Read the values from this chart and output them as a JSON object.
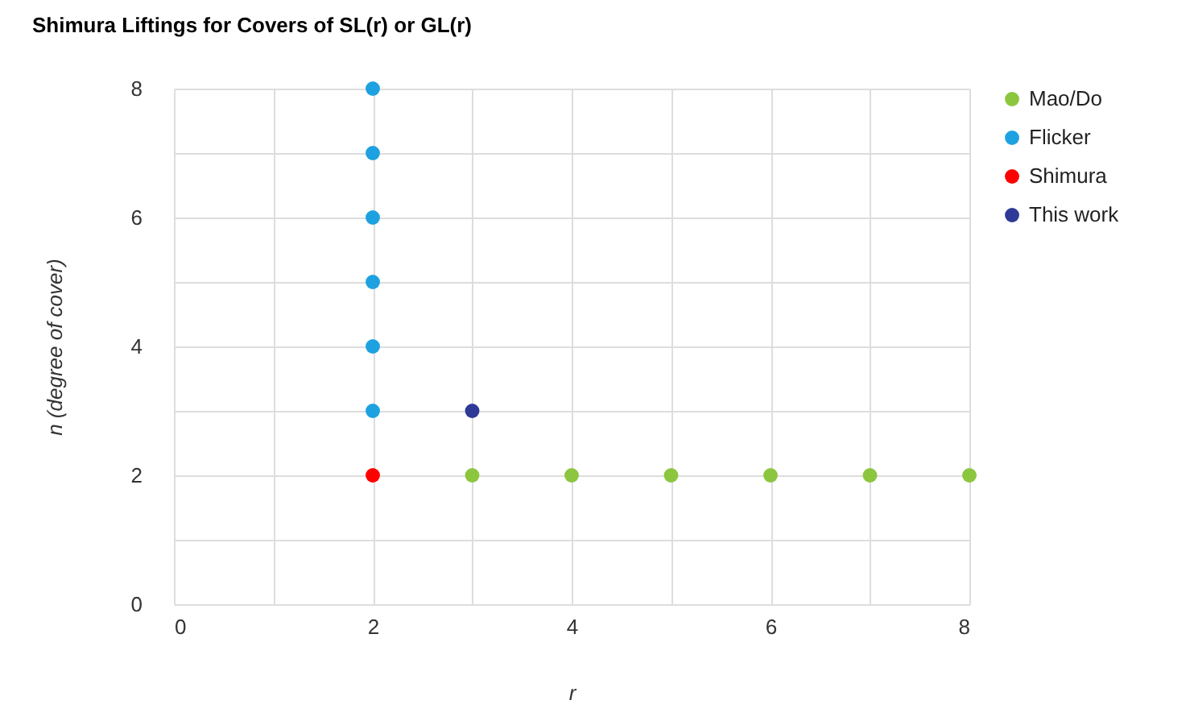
{
  "chart_data": {
    "type": "scatter",
    "title": "Shimura Liftings for Covers of SL(r) or GL(r)",
    "xlabel": "r",
    "ylabel": "n (degree of cover)",
    "series": [
      {
        "name": "Mao/Do",
        "color": "#8cc63f",
        "x": [
          3,
          4,
          5,
          6,
          7,
          8
        ],
        "values": [
          2,
          2,
          2,
          2,
          2,
          2
        ]
      },
      {
        "name": "Flicker",
        "color": "#1ea1e0",
        "x": [
          2,
          2,
          2,
          2,
          2,
          2
        ],
        "values": [
          3,
          4,
          5,
          6,
          7,
          8
        ]
      },
      {
        "name": "Shimura",
        "color": "#ff0000",
        "x": [
          2
        ],
        "values": [
          2
        ]
      },
      {
        "name": "This work",
        "color": "#2e3a96",
        "x": [
          3
        ],
        "values": [
          3
        ]
      }
    ],
    "xlim": [
      0,
      8
    ],
    "ylim": [
      0,
      8
    ],
    "xticks": [
      0,
      {
        "value": 1,
        "label": null
      },
      2,
      {
        "value": 3,
        "label": null
      },
      4,
      {
        "value": 5,
        "label": null
      },
      6,
      {
        "value": 7,
        "label": null
      },
      8
    ],
    "yticks": [
      0,
      {
        "value": 1,
        "label": null
      },
      2,
      {
        "value": 3,
        "label": null
      },
      4,
      {
        "value": 5,
        "label": null
      },
      6,
      {
        "value": 7,
        "label": null
      },
      8
    ],
    "grid": true,
    "legend": "right",
    "marker": "circle"
  }
}
